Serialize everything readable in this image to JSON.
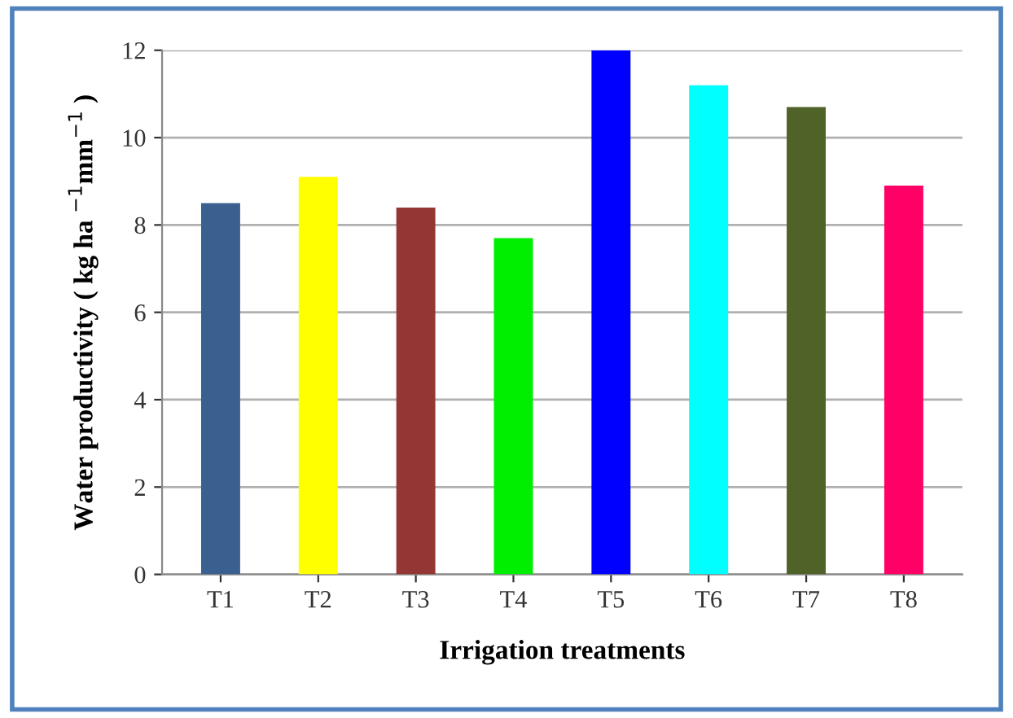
{
  "chart_data": {
    "type": "bar",
    "xlabel": "Irrigation treatments",
    "ylabel": "Water productivity ( kg ha $^{−1}$mm$^{−1}$ )",
    "categories": [
      "T1",
      "T2",
      "T3",
      "T4",
      "T5",
      "T6",
      "T7",
      "T8"
    ],
    "values": [
      8.5,
      9.1,
      8.4,
      7.7,
      12.0,
      11.2,
      10.7,
      8.9
    ],
    "colors": [
      "#3a6090",
      "#ffff00",
      "#943634",
      "#00ee00",
      "#0000ff",
      "#00ffff",
      "#4f6228",
      "#ff0066"
    ],
    "ylim": [
      0,
      12
    ],
    "yticks": [
      0,
      2,
      4,
      6,
      8,
      10,
      12
    ],
    "grid": "y",
    "legend": false
  }
}
